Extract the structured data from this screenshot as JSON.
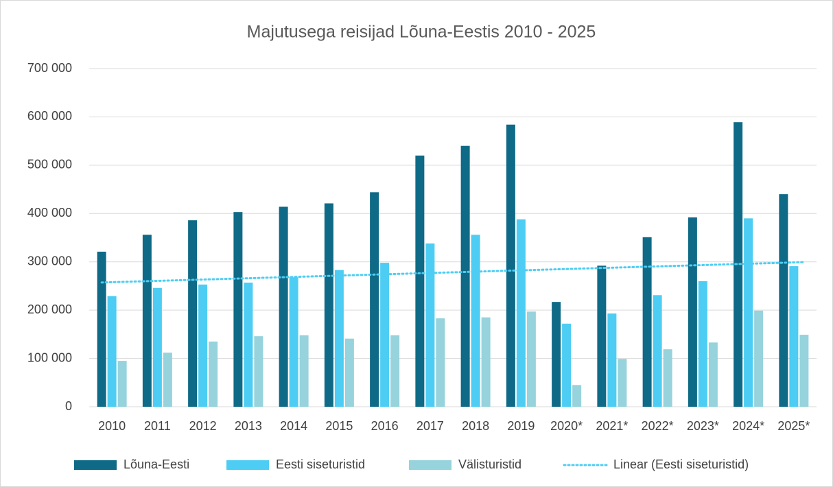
{
  "chart_data": {
    "type": "bar",
    "title": "Majutusega reisijad Lõuna-Eestis 2010 - 2025",
    "categories": [
      "2010",
      "2011",
      "2012",
      "2013",
      "2014",
      "2015",
      "2016",
      "2017",
      "2018",
      "2019",
      "2020*",
      "2021*",
      "2022*",
      "2023*",
      "2024*",
      "2025*"
    ],
    "series": [
      {
        "name": "Lõuna-Eesti",
        "color": "#0e6a86",
        "values": [
          321000,
          356000,
          386000,
          403000,
          414000,
          421000,
          444000,
          520000,
          540000,
          584000,
          217000,
          292000,
          351000,
          392000,
          589000,
          440000
        ]
      },
      {
        "name": "Eesti siseturistid",
        "color": "#4dcdf3",
        "values": [
          229000,
          246000,
          253000,
          257000,
          268000,
          283000,
          298000,
          338000,
          356000,
          388000,
          172000,
          193000,
          231000,
          260000,
          390000,
          291000
        ]
      },
      {
        "name": "Välisturistid",
        "color": "#96d3dc",
        "values": [
          95000,
          112000,
          135000,
          146000,
          148000,
          141000,
          148000,
          183000,
          185000,
          197000,
          45000,
          99000,
          119000,
          133000,
          199000,
          149000
        ]
      }
    ],
    "trendline": {
      "name": "Linear (Eesti siseturistid)",
      "series": 1,
      "color": "#4dcdf3"
    },
    "ylim": [
      0,
      700000
    ],
    "yticks": [
      0,
      {
        "value": 100000,
        "label": "100 000"
      },
      {
        "value": 200000,
        "label": "200 000"
      },
      {
        "value": 300000,
        "label": "300 000"
      },
      {
        "value": 400000,
        "label": "400 000"
      },
      {
        "value": 500000,
        "label": "500 000"
      },
      {
        "value": 600000,
        "label": "600 000"
      },
      {
        "value": 700000,
        "label": "700 000"
      }
    ],
    "grid": true,
    "legend": "bottom"
  }
}
